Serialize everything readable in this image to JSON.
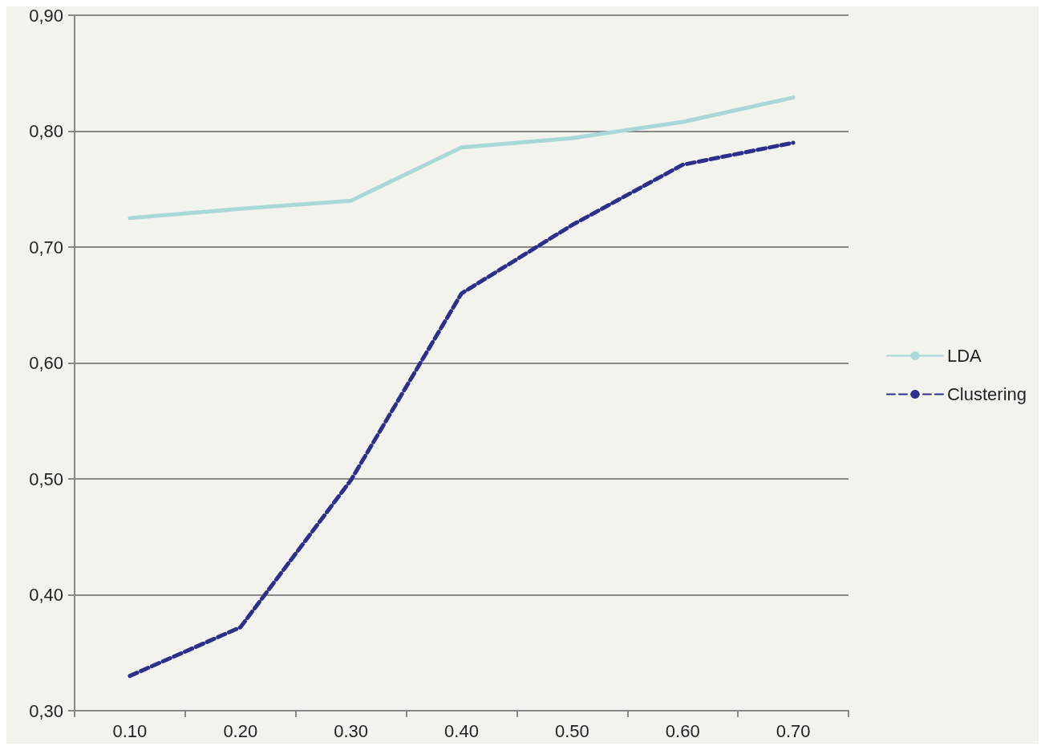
{
  "chart_data": {
    "type": "line",
    "categories": [
      "0.10",
      "0.20",
      "0.30",
      "0.40",
      "0.50",
      "0.60",
      "0.70"
    ],
    "series": [
      {
        "name": "LDA",
        "color": "#a8d8d8",
        "line_style": "solid",
        "values": [
          0.725,
          0.733,
          0.74,
          0.786,
          0.794,
          0.808,
          0.829
        ]
      },
      {
        "name": "Clustering",
        "color": "#2e2e8c",
        "line_style": "dashed",
        "values": [
          0.33,
          0.372,
          0.499,
          0.66,
          0.719,
          0.771,
          0.79
        ]
      }
    ],
    "ylim": [
      0.3,
      0.9
    ],
    "yticks": [
      {
        "value": 0.3,
        "label": "0,30"
      },
      {
        "value": 0.4,
        "label": "0,40"
      },
      {
        "value": 0.5,
        "label": "0,50"
      },
      {
        "value": 0.6,
        "label": "0,60"
      },
      {
        "value": 0.7,
        "label": "0,70"
      },
      {
        "value": 0.8,
        "label": "0,80"
      },
      {
        "value": 0.9,
        "label": "0,90"
      }
    ],
    "grid": "y",
    "legend": "right",
    "marker": "none"
  }
}
